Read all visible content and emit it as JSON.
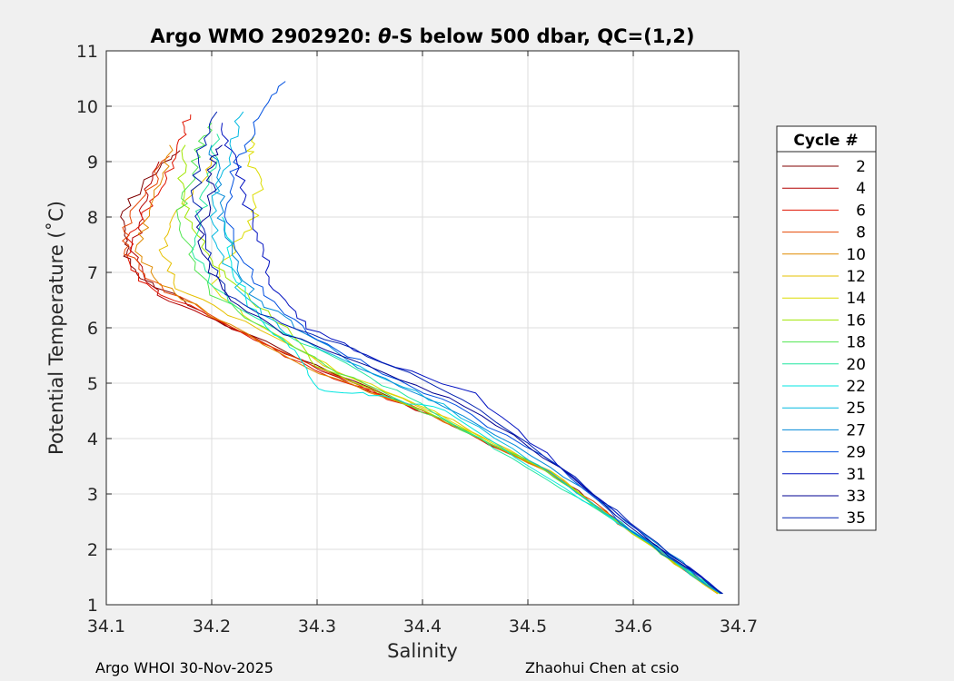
{
  "chart_data": {
    "type": "line",
    "title": "Argo WMO 2902920: θ-S below 500 dbar,  QC=(1,2)",
    "title_parts": {
      "prefix": "Argo WMO 2902920: ",
      "theta": "θ",
      "suffix": "-S below 500 dbar,  QC=(1,2)"
    },
    "xlabel": "Salinity",
    "ylabel": "Potential Temperature (˚C)",
    "xlim": [
      34.1,
      34.7
    ],
    "ylim": [
      1,
      11
    ],
    "xticks": [
      "34.1",
      "34.2",
      "34.3",
      "34.4",
      "34.5",
      "34.6",
      "34.7"
    ],
    "yticks": [
      "1",
      "2",
      "3",
      "4",
      "5",
      "6",
      "7",
      "8",
      "9",
      "10",
      "11"
    ],
    "grid": true,
    "legend_title": "Cycle #",
    "legend_position": "right-outside",
    "series": [
      {
        "name": "2",
        "color": "#800000"
      },
      {
        "name": "4",
        "color": "#b40000"
      },
      {
        "name": "6",
        "color": "#e01400"
      },
      {
        "name": "8",
        "color": "#e64400"
      },
      {
        "name": "10",
        "color": "#e08a00"
      },
      {
        "name": "12",
        "color": "#e6c000"
      },
      {
        "name": "14",
        "color": "#dcdc00"
      },
      {
        "name": "16",
        "color": "#a0e600"
      },
      {
        "name": "18",
        "color": "#50e650"
      },
      {
        "name": "20",
        "color": "#20e6a0"
      },
      {
        "name": "22",
        "color": "#00e6e0"
      },
      {
        "name": "25",
        "color": "#00b8e0"
      },
      {
        "name": "27",
        "color": "#0088d8"
      },
      {
        "name": "29",
        "color": "#0050e0"
      },
      {
        "name": "31",
        "color": "#0010c0"
      },
      {
        "name": "33",
        "color": "#000090"
      },
      {
        "name": "35",
        "color": "#0020b0"
      }
    ],
    "anchors": {
      "2": {
        "s": [
          34.683,
          34.6,
          34.52,
          34.4,
          34.3,
          34.2,
          34.14,
          34.12,
          34.115,
          34.12,
          34.15,
          34.17
        ],
        "t": [
          1.2,
          2.3,
          3.4,
          4.5,
          5.3,
          6.2,
          6.8,
          7.3,
          7.6,
          8.2,
          8.9,
          9.2
        ]
      },
      "4": {
        "s": [
          34.682,
          34.6,
          34.52,
          34.41,
          34.32,
          34.22,
          34.15,
          34.125,
          34.13,
          34.135,
          34.15
        ],
        "t": [
          1.2,
          2.3,
          3.4,
          4.4,
          5.1,
          6.0,
          6.6,
          7.2,
          7.8,
          8.4,
          9.0
        ]
      },
      "6": {
        "s": [
          34.68,
          34.6,
          34.52,
          34.4,
          34.3,
          34.21,
          34.14,
          34.12,
          34.125,
          34.145,
          34.16,
          34.17,
          34.18
        ],
        "t": [
          1.2,
          2.3,
          3.4,
          4.5,
          5.2,
          6.1,
          6.7,
          7.2,
          7.7,
          8.3,
          8.9,
          9.4,
          9.85
        ]
      },
      "8": {
        "s": [
          34.682,
          34.6,
          34.52,
          34.4,
          34.31,
          34.2,
          34.14,
          34.118,
          34.12,
          34.14,
          34.16
        ],
        "t": [
          1.2,
          2.3,
          3.4,
          4.5,
          5.2,
          6.2,
          6.9,
          7.4,
          7.9,
          8.5,
          9.1
        ]
      },
      "10": {
        "s": [
          34.68,
          34.6,
          34.52,
          34.4,
          34.3,
          34.2,
          34.15,
          34.13,
          34.14,
          34.155,
          34.16
        ],
        "t": [
          1.2,
          2.3,
          3.4,
          4.5,
          5.2,
          6.2,
          6.8,
          7.4,
          8.0,
          8.7,
          9.3
        ]
      },
      "12": {
        "s": [
          34.68,
          34.6,
          34.52,
          34.41,
          34.32,
          34.23,
          34.17,
          34.155,
          34.165,
          34.19,
          34.2
        ],
        "t": [
          1.2,
          2.3,
          3.4,
          4.5,
          5.2,
          6.1,
          6.7,
          7.4,
          8.0,
          8.6,
          9.1
        ]
      },
      "14": {
        "s": [
          34.682,
          34.6,
          34.52,
          34.41,
          34.32,
          34.24,
          34.2,
          34.22,
          34.24,
          34.245,
          34.235,
          34.24
        ],
        "t": [
          1.2,
          2.3,
          3.4,
          4.5,
          5.2,
          6.1,
          6.8,
          7.4,
          8.0,
          8.6,
          9.1,
          9.45
        ]
      },
      "16": {
        "s": [
          34.682,
          34.6,
          34.52,
          34.4,
          34.3,
          34.27,
          34.23,
          34.2,
          34.18,
          34.17,
          34.175
        ],
        "t": [
          1.2,
          2.3,
          3.4,
          4.5,
          5.3,
          6.0,
          6.6,
          7.2,
          7.9,
          8.6,
          9.3
        ]
      },
      "18": {
        "s": [
          34.683,
          34.6,
          34.51,
          34.4,
          34.32,
          34.25,
          34.2,
          34.18,
          34.17,
          34.18,
          34.19,
          34.2
        ],
        "t": [
          1.2,
          2.3,
          3.5,
          4.5,
          5.2,
          6.0,
          6.6,
          7.3,
          8.0,
          8.7,
          9.3,
          9.7
        ]
      },
      "20": {
        "s": [
          34.683,
          34.6,
          34.5,
          34.41,
          34.34,
          34.26,
          34.2,
          34.185,
          34.19,
          34.2,
          34.205
        ],
        "t": [
          1.2,
          2.3,
          3.5,
          4.5,
          5.2,
          6.0,
          6.7,
          7.4,
          8.1,
          8.8,
          9.5
        ]
      },
      "22": {
        "s": [
          34.684,
          34.6,
          34.5,
          34.42,
          34.35,
          34.3,
          34.28,
          34.25,
          34.23,
          34.22,
          34.21
        ],
        "t": [
          1.2,
          2.3,
          3.5,
          4.5,
          4.8,
          4.9,
          5.6,
          6.0,
          6.6,
          7.3,
          8.0
        ]
      },
      "25": {
        "s": [
          34.683,
          34.6,
          34.52,
          34.42,
          34.34,
          34.27,
          34.23,
          34.21,
          34.2,
          34.21,
          34.22,
          34.23
        ],
        "t": [
          1.2,
          2.3,
          3.4,
          4.6,
          5.3,
          5.9,
          6.6,
          7.3,
          8.0,
          8.7,
          9.4,
          9.9
        ]
      },
      "27": {
        "s": [
          34.683,
          34.61,
          34.52,
          34.42,
          34.34,
          34.28,
          34.24,
          34.22,
          34.21,
          34.205,
          34.2
        ],
        "t": [
          1.2,
          2.3,
          3.5,
          4.6,
          5.3,
          6.0,
          6.6,
          7.3,
          8.0,
          8.7,
          9.3
        ]
      },
      "29": {
        "s": [
          34.684,
          34.6,
          34.53,
          34.43,
          34.35,
          34.29,
          34.25,
          34.23,
          34.21,
          34.22,
          34.23,
          34.25,
          34.27
        ],
        "t": [
          1.2,
          2.3,
          3.5,
          4.6,
          5.3,
          5.9,
          6.6,
          7.3,
          8.0,
          8.7,
          9.3,
          9.9,
          10.45
        ]
      },
      "31": {
        "s": [
          34.684,
          34.62,
          34.53,
          34.45,
          34.36,
          34.29,
          34.26,
          34.25,
          34.24,
          34.23,
          34.22,
          34.21
        ],
        "t": [
          1.2,
          2.1,
          3.5,
          4.8,
          5.4,
          6.0,
          6.6,
          7.2,
          7.8,
          8.4,
          9.1,
          9.7
        ]
      },
      "33": {
        "s": [
          34.684,
          34.61,
          34.53,
          34.44,
          34.35,
          34.27,
          34.22,
          34.195,
          34.19,
          34.2,
          34.2,
          34.21
        ],
        "t": [
          1.2,
          2.2,
          3.5,
          4.6,
          5.3,
          5.9,
          6.5,
          7.1,
          7.8,
          8.5,
          9.0,
          9.3
        ]
      },
      "35": {
        "s": [
          34.685,
          34.61,
          34.53,
          34.44,
          34.36,
          34.28,
          34.22,
          34.2,
          34.19,
          34.185,
          34.19,
          34.205
        ],
        "t": [
          1.2,
          2.3,
          3.5,
          4.7,
          5.4,
          6.0,
          6.5,
          7.1,
          7.8,
          8.5,
          9.2,
          9.9
        ]
      }
    }
  },
  "footer": {
    "left": "Argo WHOI 30-Nov-2025",
    "right": "Zhaohui Chen at csio"
  }
}
